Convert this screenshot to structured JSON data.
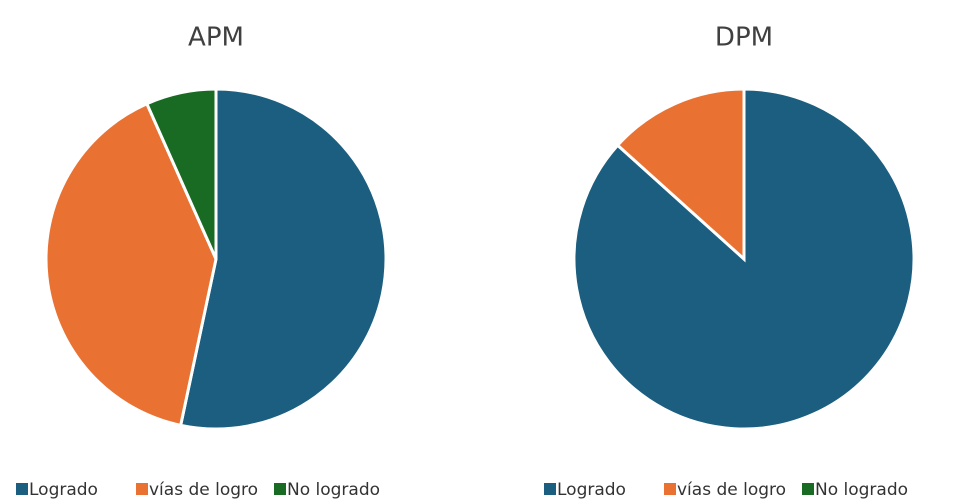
{
  "chart_data": [
    {
      "type": "pie",
      "title": "APM",
      "categories": [
        "Logrado",
        "vías de logro",
        "No logrado"
      ],
      "values": [
        8,
        6,
        1
      ],
      "colors": [
        "#1b5e7f",
        "#e97132",
        "#196b24"
      ]
    },
    {
      "type": "pie",
      "title": "DPM",
      "categories": [
        "Logrado",
        "vías de logro",
        "No logrado"
      ],
      "values": [
        13,
        2,
        0
      ],
      "colors": [
        "#1b5e7f",
        "#e97132",
        "#196b24"
      ]
    }
  ]
}
